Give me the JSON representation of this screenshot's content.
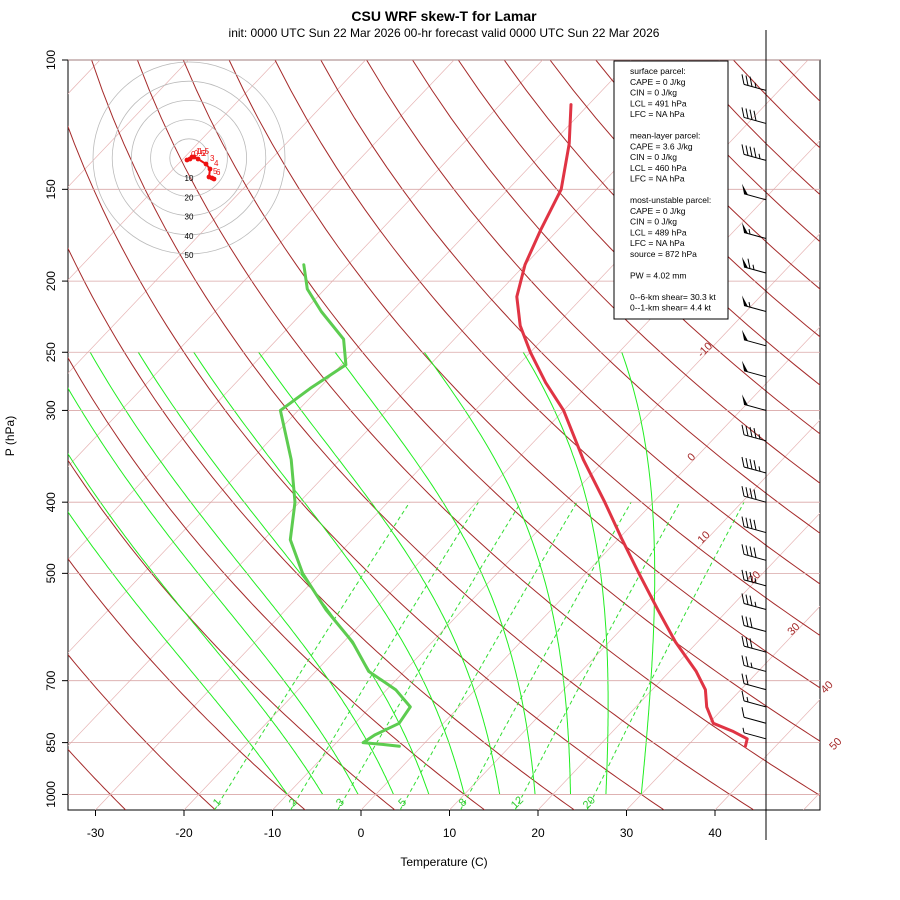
{
  "header": {
    "title": "CSU WRF skew-T for Lamar",
    "subtitle": "init: 0000 UTC Sun 22 Mar 2026    00-hr forecast valid 0000 UTC Sun 22 Mar 2026"
  },
  "chart_data": {
    "type": "skew-T log-P sounding",
    "title": "CSU WRF skew-T for Lamar",
    "xlabel": "Temperature (C)",
    "ylabel": "P (hPa)",
    "xlim": [
      -33,
      43
    ],
    "ylim_hpa": [
      1050,
      100
    ],
    "y_log_scale": true,
    "x_ticks": [
      "-30",
      "-20",
      "-10",
      "0",
      "10",
      "20",
      "30",
      "40"
    ],
    "pressure_ticks": [
      "100",
      "150",
      "200",
      "250",
      "300",
      "400",
      "500",
      "700",
      "850",
      "1000"
    ],
    "isotherm_labels": [
      "-10",
      "0",
      "10",
      "20",
      "30",
      "40",
      "50"
    ],
    "mixing_ratio_labels": [
      "1",
      "2",
      "3",
      "5",
      "8",
      "12",
      "20"
    ],
    "temperature_profile": [
      {
        "p": 860,
        "t": 36.6
      },
      {
        "p": 840,
        "t": 36.0
      },
      {
        "p": 820,
        "t": 33.5
      },
      {
        "p": 800,
        "t": 30.5
      },
      {
        "p": 760,
        "t": 28.0
      },
      {
        "p": 720,
        "t": 26.0
      },
      {
        "p": 680,
        "t": 23.0
      },
      {
        "p": 620,
        "t": 17.5
      },
      {
        "p": 560,
        "t": 12.0
      },
      {
        "p": 500,
        "t": 6.0
      },
      {
        "p": 450,
        "t": 0.5
      },
      {
        "p": 400,
        "t": -5.5
      },
      {
        "p": 350,
        "t": -12.5
      },
      {
        "p": 300,
        "t": -20.0
      },
      {
        "p": 275,
        "t": -25.0
      },
      {
        "p": 250,
        "t": -30.0
      },
      {
        "p": 230,
        "t": -34.0
      },
      {
        "p": 210,
        "t": -37.5
      },
      {
        "p": 190,
        "t": -40.0
      },
      {
        "p": 170,
        "t": -42.0
      },
      {
        "p": 150,
        "t": -44.0
      },
      {
        "p": 130,
        "t": -48.0
      },
      {
        "p": 115,
        "t": -52.0
      }
    ],
    "dewpoint_profile": [
      {
        "p": 860,
        "t": -2.5
      },
      {
        "p": 855,
        "t": -4.5
      },
      {
        "p": 850,
        "t": -7.0
      },
      {
        "p": 830,
        "t": -6.5
      },
      {
        "p": 800,
        "t": -5.0
      },
      {
        "p": 760,
        "t": -5.5
      },
      {
        "p": 720,
        "t": -9.0
      },
      {
        "p": 680,
        "t": -14.0
      },
      {
        "p": 620,
        "t": -19.0
      },
      {
        "p": 560,
        "t": -25.5
      },
      {
        "p": 500,
        "t": -32.0
      },
      {
        "p": 450,
        "t": -37.0
      },
      {
        "p": 400,
        "t": -40.5
      },
      {
        "p": 350,
        "t": -45.5
      },
      {
        "p": 300,
        "t": -52.0
      },
      {
        "p": 280,
        "t": -51.0
      },
      {
        "p": 260,
        "t": -49.5
      },
      {
        "p": 240,
        "t": -52.5
      },
      {
        "p": 220,
        "t": -58.0
      },
      {
        "p": 205,
        "t": -62.0
      },
      {
        "p": 190,
        "t": -65.0
      }
    ],
    "series": [
      {
        "name": "temperature",
        "color": "#e03444"
      },
      {
        "name": "dewpoint",
        "color": "#5dcc50"
      }
    ],
    "parcel_info": [
      "surface parcel:",
      "CAPE = 0 J/kg",
      "CIN = 0 J/kg",
      "LCL = 491 hPa",
      "LFC = NA hPa",
      "",
      "mean-layer parcel:",
      "CAPE = 3.6 J/kg",
      "CIN = 0 J/kg",
      "LCL = 460 hPa",
      "LFC = NA hPa",
      "",
      "most-unstable parcel:",
      "CAPE = 0 J/kg",
      "CIN = 0 J/kg",
      "LCL = 489 hPa",
      "LFC = NA hPa",
      "source = 872 hPa",
      "",
      "PW =  4.02 mm",
      "",
      "0--6-km shear= 30.3 kt",
      "0--1-km shear= 4.4 kt"
    ],
    "hodograph": {
      "ring_labels": [
        "10",
        "20",
        "30",
        "40",
        "50"
      ],
      "point_labels": [
        "0",
        "0.5",
        "1",
        "1.5",
        "2",
        "3",
        "4",
        "5",
        "6"
      ],
      "points": [
        {
          "u": -1.0,
          "v": -1.0
        },
        {
          "u": 0.5,
          "v": -0.5
        },
        {
          "u": 1.5,
          "v": 0.5
        },
        {
          "u": 2.5,
          "v": 0.5
        },
        {
          "u": 4.5,
          "v": -0.5
        },
        {
          "u": 8.5,
          "v": -3.0
        },
        {
          "u": 10.5,
          "v": -5.5
        },
        {
          "u": 10.0,
          "v": -9.5
        },
        {
          "u": 11.5,
          "v": -10.0
        },
        {
          "u": 12.5,
          "v": -10.5
        }
      ]
    },
    "wind_barbs": [
      {
        "p": 110,
        "kt": 35
      },
      {
        "p": 122,
        "kt": 40
      },
      {
        "p": 137,
        "kt": 45
      },
      {
        "p": 155,
        "kt": 50
      },
      {
        "p": 175,
        "kt": 55
      },
      {
        "p": 195,
        "kt": 65
      },
      {
        "p": 220,
        "kt": 55
      },
      {
        "p": 245,
        "kt": 50
      },
      {
        "p": 270,
        "kt": 50
      },
      {
        "p": 300,
        "kt": 50
      },
      {
        "p": 330,
        "kt": 45
      },
      {
        "p": 365,
        "kt": 45
      },
      {
        "p": 400,
        "kt": 40
      },
      {
        "p": 440,
        "kt": 40
      },
      {
        "p": 480,
        "kt": 40
      },
      {
        "p": 520,
        "kt": 35
      },
      {
        "p": 560,
        "kt": 35
      },
      {
        "p": 600,
        "kt": 30
      },
      {
        "p": 640,
        "kt": 30
      },
      {
        "p": 680,
        "kt": 25
      },
      {
        "p": 720,
        "kt": 20
      },
      {
        "p": 760,
        "kt": 15
      },
      {
        "p": 800,
        "kt": 10
      },
      {
        "p": 840,
        "kt": 5
      }
    ]
  }
}
